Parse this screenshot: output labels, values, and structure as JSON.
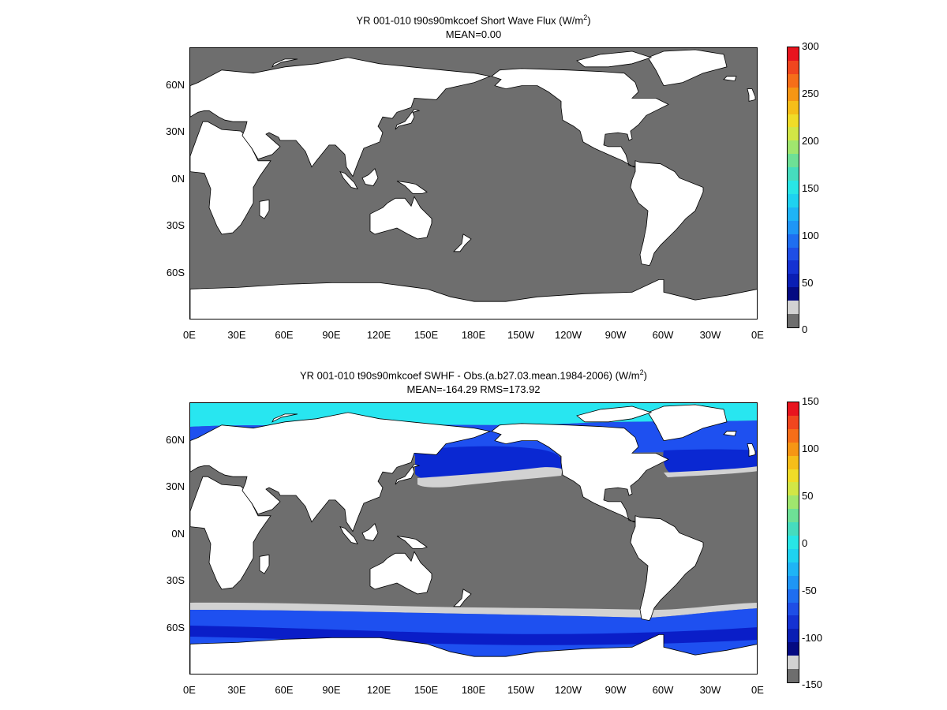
{
  "panels": [
    {
      "id": "top",
      "title_pre": "YR 001-010 t90s90mkcoef  Short Wave Flux (W/m",
      "title_sup": "2",
      "title_post": ")",
      "subtitle": "MEAN=0.00",
      "colorbar": {
        "labels": [
          "300",
          "250",
          "200",
          "150",
          "100",
          "50",
          "0"
        ],
        "colors": [
          "#e8141e",
          "#f0461e",
          "#f56e19",
          "#f59614",
          "#f5be19",
          "#f0dc28",
          "#d2e646",
          "#a0e66e",
          "#6ee096",
          "#46dcbe",
          "#28e6e6",
          "#1ed2f0",
          "#1eb4f5",
          "#1e96f5",
          "#1e6ef0",
          "#1e4ee6",
          "#1432d2",
          "#0a1eb4",
          "#050a82",
          "#d2d2d2",
          "#6e6e6e"
        ]
      }
    },
    {
      "id": "bottom",
      "title_pre": "YR 001-010 t90s90mkcoef SWHF - Obs.(a.b27.03.mean.1984-2006) (W/m",
      "title_sup": "2",
      "title_post": ")",
      "subtitle": "MEAN=-164.29 RMS=173.92",
      "colorbar": {
        "labels": [
          "150",
          "100",
          "50",
          "0",
          "-50",
          "-100",
          "-150"
        ],
        "colors": [
          "#e8141e",
          "#f0461e",
          "#f56e19",
          "#f59614",
          "#f5be19",
          "#f0dc28",
          "#d2e646",
          "#a0e66e",
          "#6ee096",
          "#46dcbe",
          "#28e6e6",
          "#1ed2f0",
          "#1eb4f5",
          "#1e96f5",
          "#1e6ef0",
          "#1e4ee6",
          "#1432d2",
          "#0a1eb4",
          "#050a82",
          "#d2d2d2",
          "#6e6e6e"
        ]
      }
    }
  ],
  "lon_labels": [
    "0E",
    "30E",
    "60E",
    "90E",
    "120E",
    "150E",
    "180E",
    "150W",
    "120W",
    "90W",
    "60W",
    "30W",
    "0E"
  ],
  "lat_labels": [
    "60N",
    "30N",
    "0N",
    "30S",
    "60S"
  ],
  "colors": {
    "land": "#ffffff",
    "ocean": "#6e6e6e",
    "band": "#d2d2d2",
    "cyan": "#28e6f0",
    "blue": "#1e50f0",
    "deep_blue": "#0a1ec8"
  }
}
